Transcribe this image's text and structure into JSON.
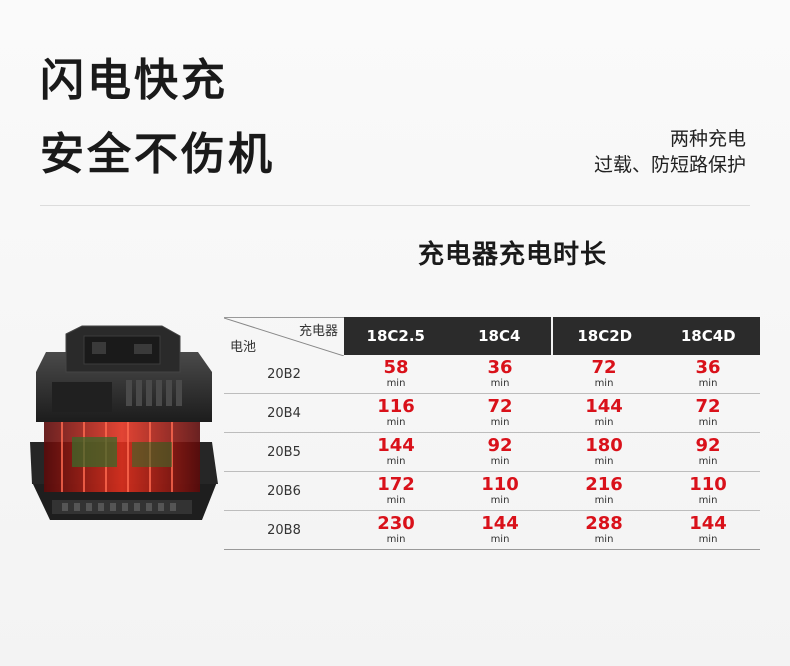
{
  "hero": {
    "line1": "闪电快充",
    "line2": "安全不伤机"
  },
  "side_notes": {
    "line1": "两种充电",
    "line2": "过载、防短路保护"
  },
  "section_title": "充电器充电时长",
  "table": {
    "corner_top": "充电器",
    "corner_bottom": "电池",
    "columns": [
      "18C2.5",
      "18C4",
      "18C2D",
      "18C4D"
    ],
    "unit": "min",
    "rows": [
      {
        "label": "20B2",
        "values": [
          "58",
          "36",
          "72",
          "36"
        ]
      },
      {
        "label": "20B4",
        "values": [
          "116",
          "72",
          "144",
          "72"
        ]
      },
      {
        "label": "20B5",
        "values": [
          "144",
          "92",
          "180",
          "92"
        ]
      },
      {
        "label": "20B6",
        "values": [
          "172",
          "110",
          "216",
          "110"
        ]
      },
      {
        "label": "20B8",
        "values": [
          "230",
          "144",
          "288",
          "144"
        ]
      }
    ]
  },
  "colors": {
    "value_red": "#d9111a",
    "header_dark": "#2b2b2b"
  }
}
